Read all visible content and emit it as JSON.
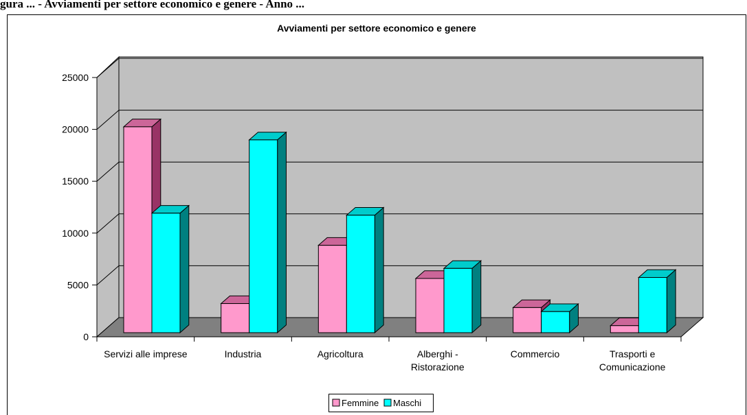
{
  "header_fragment": "gura ... - Avviamenti per settore economico e genere - Anno ...",
  "chart_data": {
    "type": "bar",
    "title": "Avviamenti per settore economico e genere",
    "categories": [
      [
        "Servizi alle imprese"
      ],
      [
        "Industria"
      ],
      [
        "Agricoltura"
      ],
      [
        "Alberghi -",
        "Ristorazione"
      ],
      [
        "Commercio"
      ],
      [
        "Trasporti e",
        "Comunicazione"
      ]
    ],
    "series": [
      {
        "name": "Femmine",
        "values": [
          20500,
          2900,
          8700,
          5400,
          2500,
          700
        ]
      },
      {
        "name": "Maschi",
        "values": [
          11900,
          19200,
          11700,
          6400,
          2100,
          5500
        ]
      }
    ],
    "yticks": [
      "0",
      "5000",
      "10000",
      "15000",
      "20000",
      "25000"
    ],
    "ylim": [
      0,
      25000
    ],
    "grid": true,
    "legend_position": "bottom",
    "colors": {
      "Femmine": {
        "front": "#ff99cc",
        "top": "#cc6699",
        "side": "#993366"
      },
      "Maschi": {
        "front": "#00ffff",
        "top": "#00cccc",
        "side": "#008080"
      },
      "back_wall": "#c0c0c0",
      "floor": "#808080",
      "side_wall": "#c0c0c0"
    }
  }
}
